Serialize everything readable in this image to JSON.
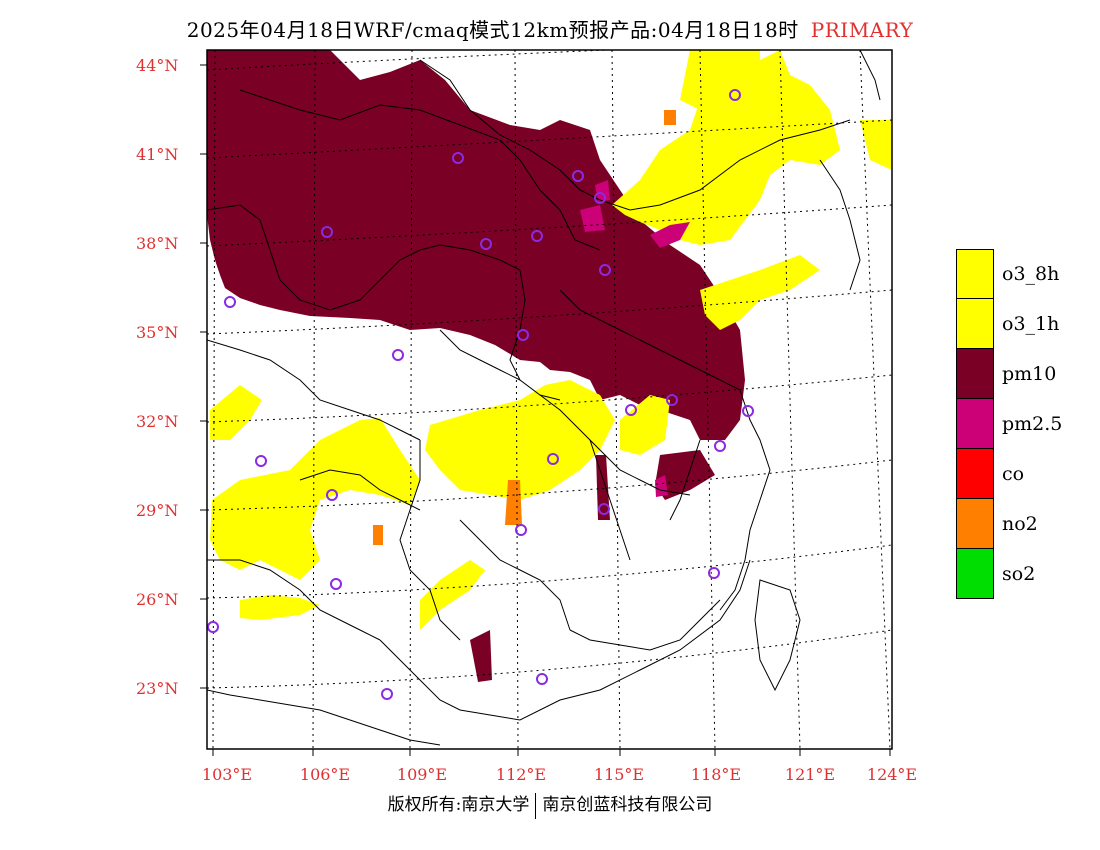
{
  "title": {
    "main": "2025年04月18日WRF/cmaq模式12km预报产品:04月18日18时",
    "primary": "PRIMARY"
  },
  "axes": {
    "lat_labels": [
      "44°N",
      "41°N",
      "38°N",
      "35°N",
      "32°N",
      "29°N",
      "26°N",
      "23°N"
    ],
    "lon_labels": [
      "103°E",
      "106°E",
      "109°E",
      "112°E",
      "115°E",
      "118°E",
      "121°E",
      "124°E"
    ]
  },
  "legend": {
    "items": [
      {
        "label": "o3_8h",
        "color": "#ffff00"
      },
      {
        "label": "o3_1h",
        "color": "#ffff00"
      },
      {
        "label": "pm10",
        "color": "#7a0025"
      },
      {
        "label": "pm2.5",
        "color": "#cc0077"
      },
      {
        "label": "co",
        "color": "#ff0000"
      },
      {
        "label": "no2",
        "color": "#ff7f00"
      },
      {
        "label": "so2",
        "color": "#00dd00"
      }
    ]
  },
  "colors": {
    "pm10": "#7a0025",
    "o3": "#ffff00",
    "pm25": "#cc0077",
    "no2": "#ff7f00",
    "station": "#8a2be2",
    "axis_label": "#e03030"
  },
  "footer": {
    "left": "版权所有:南京大学",
    "right": "南京创蓝科技有限公司"
  }
}
